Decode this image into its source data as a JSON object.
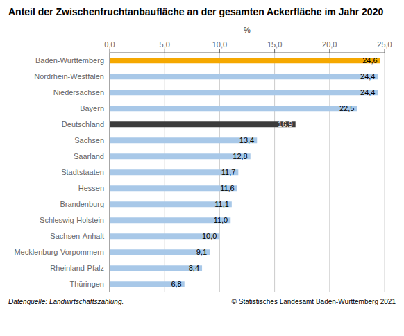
{
  "chart_data": {
    "type": "bar",
    "orientation": "horizontal",
    "title": "Anteil der Zwischenfruchtanbaufläche an der gesamten Ackerfläche im Jahr 2020",
    "xlabel": "%",
    "categories": [
      "Thüringen",
      "Rheinland-Pfalz",
      "Mecklenburg-Vorpommern",
      "Sachsen-Anhalt",
      "Schleswig-Holstein",
      "Brandenburg",
      "Hessen",
      "Stadtstaaten",
      "Saarland",
      "Sachsen",
      "Deutschland",
      "Bayern",
      "Niedersachsen",
      "Nordrhein-Westfalen",
      "Baden-Württemberg"
    ],
    "values": [
      6.8,
      8.4,
      9.1,
      10.0,
      11.0,
      11.1,
      11.6,
      11.7,
      12.8,
      13.4,
      16.9,
      22.5,
      24.4,
      24.4,
      24.6
    ],
    "value_labels": [
      "6,8",
      "8,4",
      "9,1",
      "10,0",
      "11,0",
      "11,1",
      "11,6",
      "11,7",
      "12,8",
      "13,4",
      "16,9",
      "22,5",
      "24,4",
      "24,4",
      "24,6"
    ],
    "colors": [
      "#a8c8e8",
      "#a8c8e8",
      "#a8c8e8",
      "#a8c8e8",
      "#a8c8e8",
      "#a8c8e8",
      "#a8c8e8",
      "#a8c8e8",
      "#a8c8e8",
      "#a8c8e8",
      "#3c3c3c",
      "#a8c8e8",
      "#a8c8e8",
      "#a8c8e8",
      "#f5a800"
    ],
    "xlim": [
      0,
      25.0
    ],
    "xticks": [
      {
        "value": 0.0,
        "label": "0,0"
      },
      {
        "value": 5.0,
        "label": "5,0"
      },
      {
        "value": 10.0,
        "label": "10,0"
      },
      {
        "value": 15.0,
        "label": "15,0"
      },
      {
        "value": 20.0,
        "label": "20,0"
      },
      {
        "value": 25.0,
        "label": "25,0"
      }
    ],
    "grid": true,
    "data_labels": true,
    "annotations": [
      "Datenquelle: Landwirtschaftszählung.",
      "© Statistisches Landesamt Baden-Württemberg 2021"
    ]
  }
}
